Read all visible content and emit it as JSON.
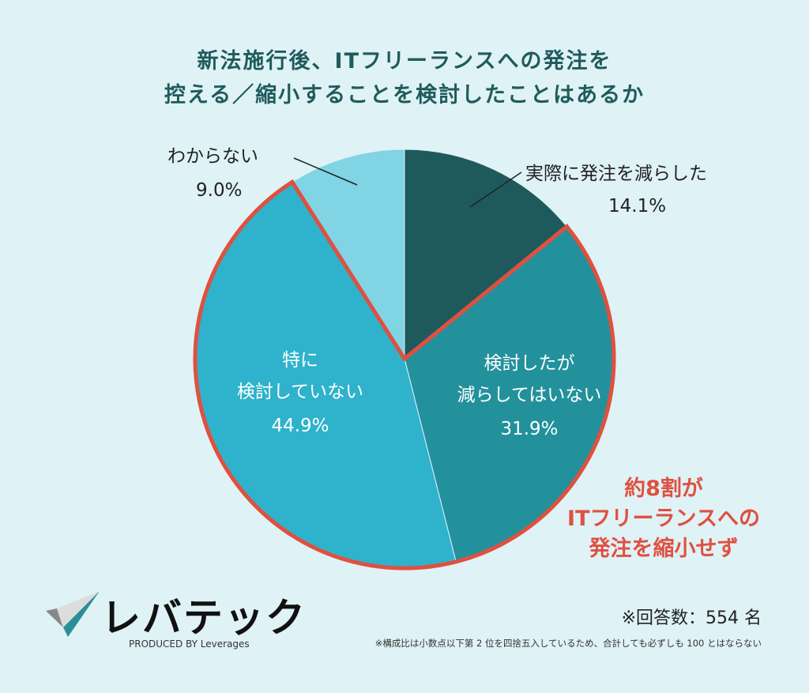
{
  "chart_data": {
    "type": "pie",
    "title": [
      "新法施行後、ITフリーランスへの発注を",
      "控える／縮小することを検討したことはあるか"
    ],
    "slices": [
      {
        "label": "実際に発注を減らした",
        "value": 14.1,
        "display": "14.1%",
        "color": "#1e5a5c"
      },
      {
        "label": "検討したが減らしてはいない",
        "value": 31.9,
        "display": "31.9%",
        "color": "#23919b"
      },
      {
        "label": "特に検討していない",
        "value": 44.9,
        "display": "44.9%",
        "color": "#2fb2cc"
      },
      {
        "label": "わからない",
        "value": 9.0,
        "display": "9.0%",
        "color": "#80d4e4"
      }
    ],
    "highlight_color": "#e0503f",
    "annotation": [
      "約8割が",
      "ITフリーランスへの",
      "発注を縮小せず"
    ],
    "respondents": "※回答数：554 名",
    "footnote": "※構成比は小数点以下第 2 位を四捨五入しているため、合計しても必ずしも 100 とはならない"
  },
  "logo": {
    "name": "レバテック",
    "sub": "PRODUCED BY Leverages"
  }
}
